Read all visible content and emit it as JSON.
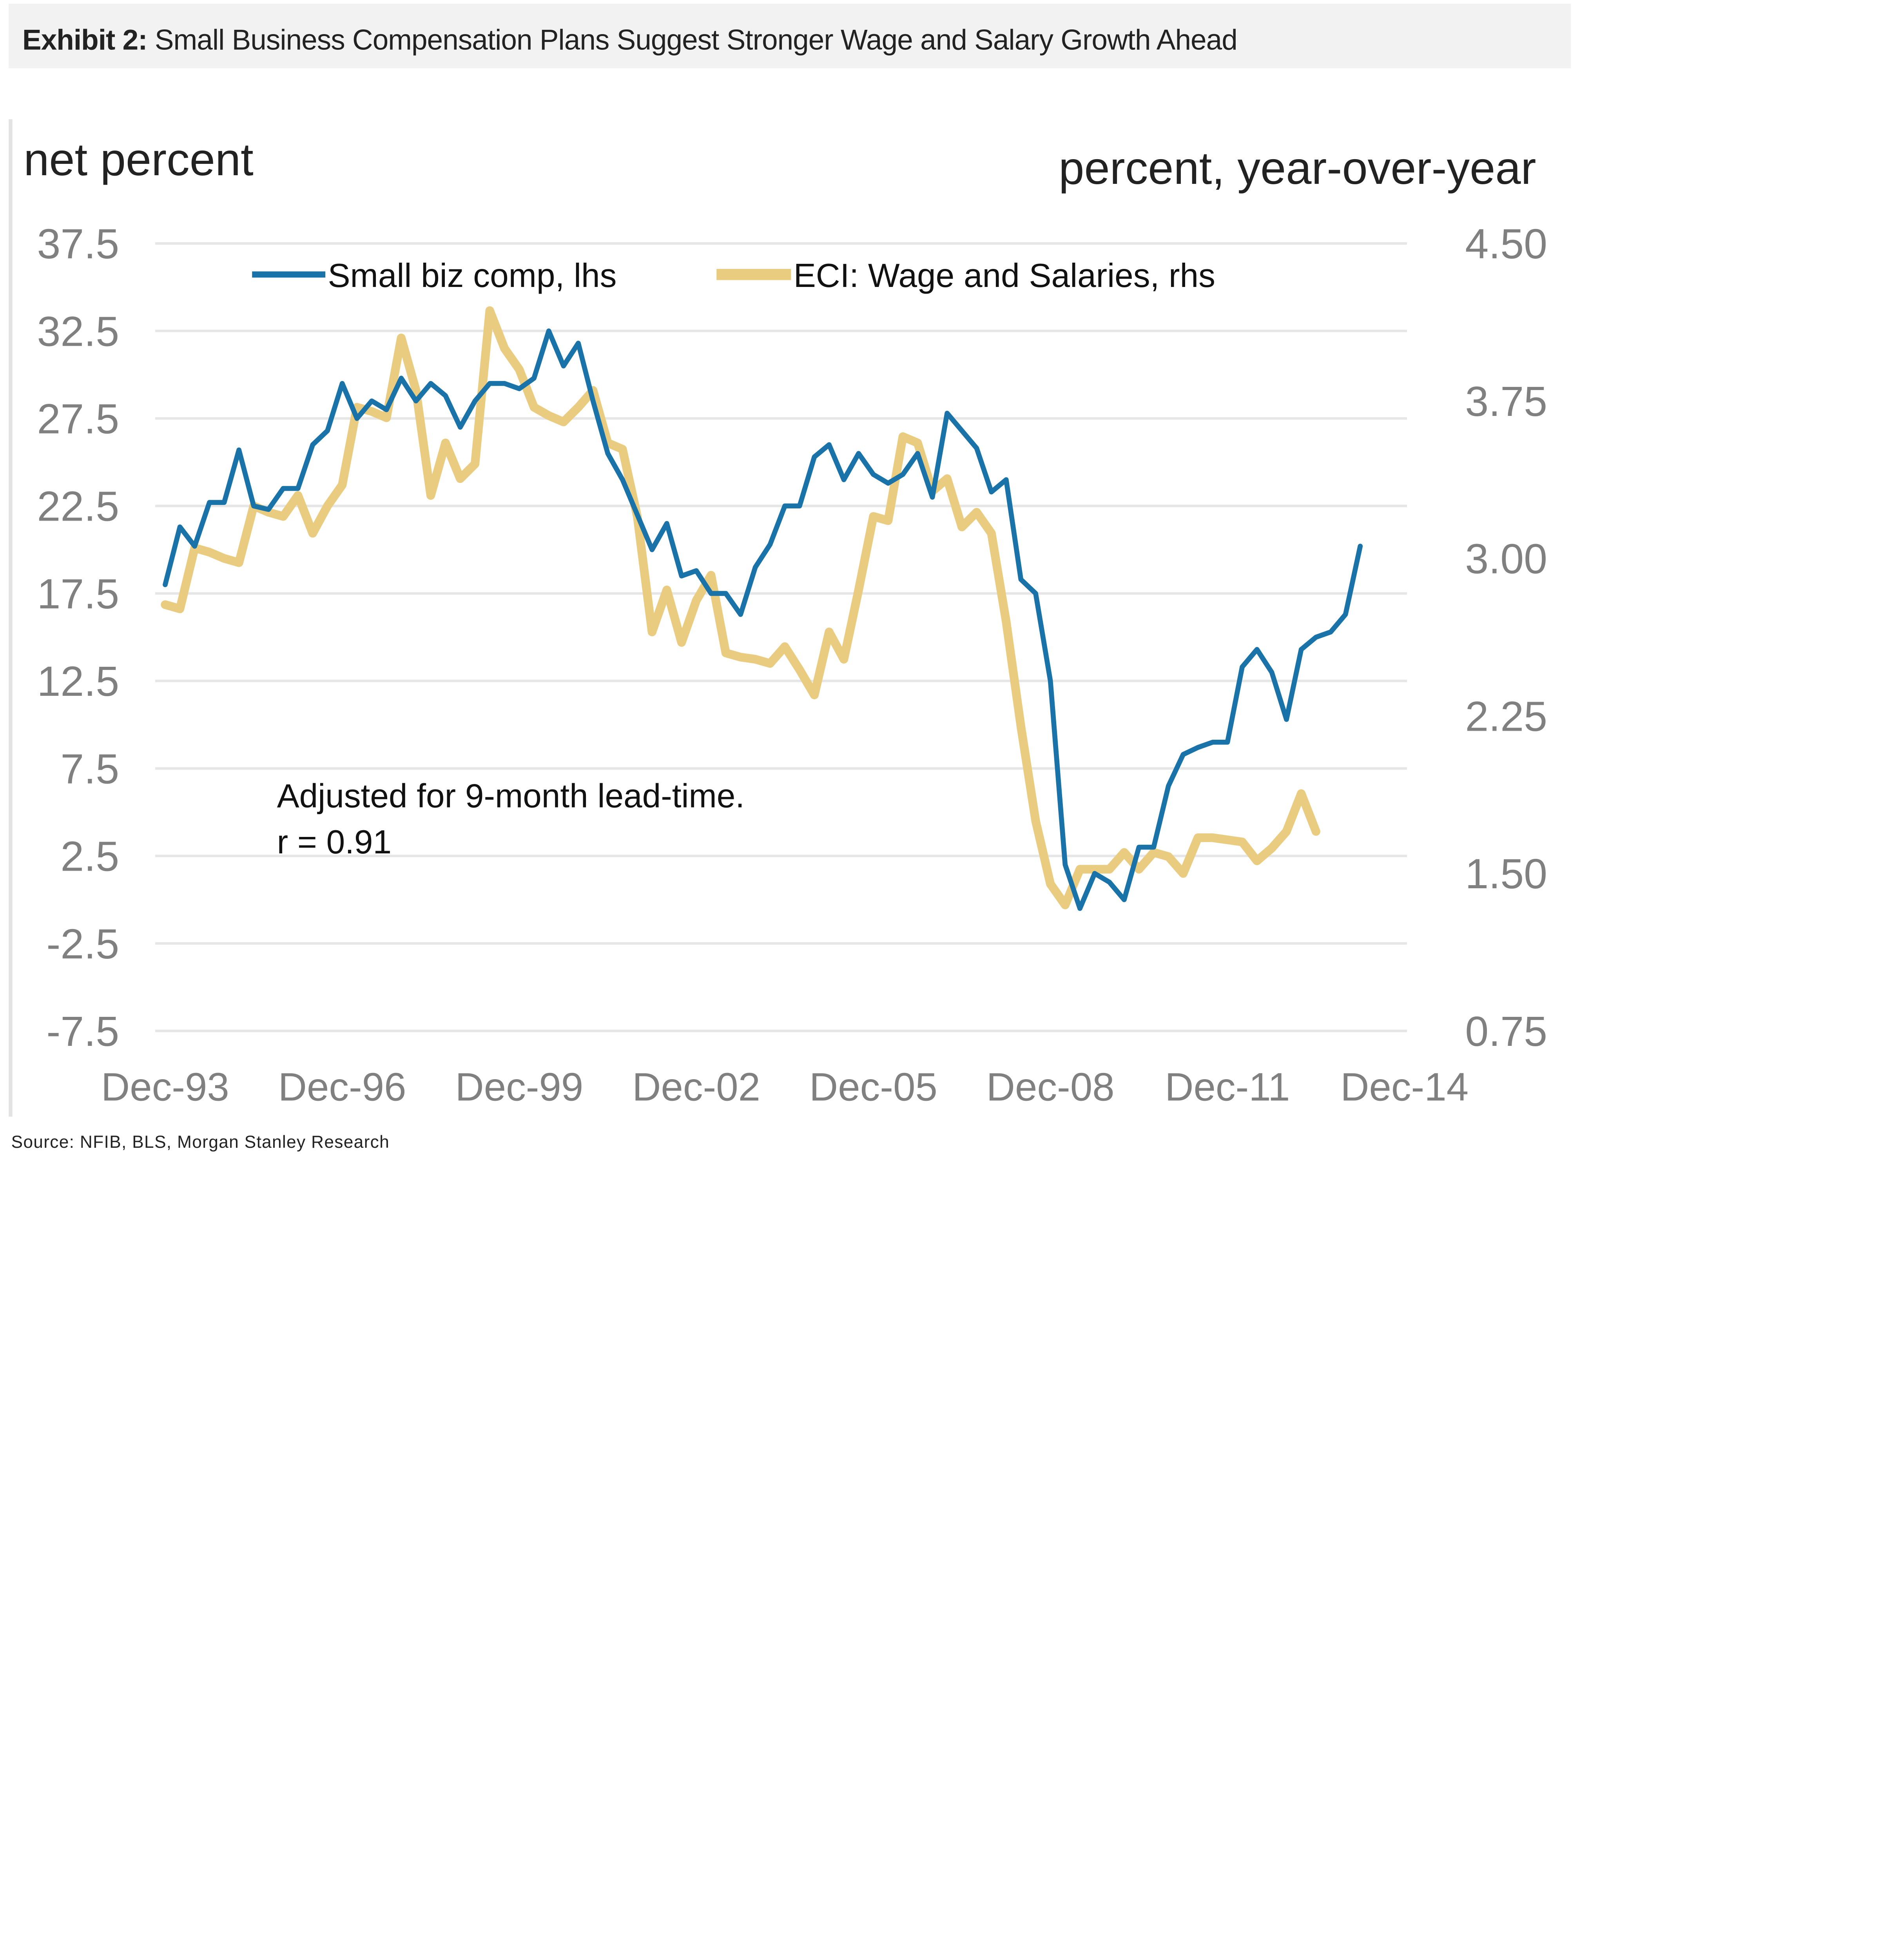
{
  "header": {
    "exhibit_label": "Exhibit 2:",
    "title": "Small Business Compensation Plans Suggest Stronger Wage and Salary Growth Ahead"
  },
  "footer": {
    "source": "Source: NFIB, BLS, Morgan Stanley Research"
  },
  "colors": {
    "small_biz": "#1a73a8",
    "eci": "#e9cc7f",
    "grid": "#e6e6e6",
    "tick_text": "#808080",
    "title_bg": "#f2f2f2"
  },
  "chart_data": {
    "type": "line",
    "title": "Small Business Compensation Plans Suggest Stronger Wage and Salary Growth Ahead",
    "ylabel_left": "net percent",
    "ylabel_right": "percent, year-over-year",
    "xlabel": "",
    "annotation": [
      "Adjusted for 9-month lead-time.",
      "r = 0.91"
    ],
    "legend": [
      "Small biz comp, lhs",
      "ECI: Wage and Salaries, rhs"
    ],
    "legend_position": "top",
    "grid": true,
    "x_ticks": [
      "Dec-93",
      "Dec-96",
      "Dec-99",
      "Dec-02",
      "Dec-05",
      "Dec-08",
      "Dec-11",
      "Dec-14"
    ],
    "x_tick_years": [
      1993.92,
      1996.92,
      1999.92,
      2002.92,
      2005.92,
      2008.92,
      2011.92,
      2014.92
    ],
    "xlim": [
      1993.92,
      2014.92
    ],
    "y_left_ticks": [
      "37.5",
      "32.5",
      "27.5",
      "22.5",
      "17.5",
      "12.5",
      "7.5",
      "2.5",
      "-2.5",
      "-7.5"
    ],
    "ylim_left": [
      -7.5,
      37.5
    ],
    "y_right_ticks": [
      "4.50",
      "3.75",
      "3.00",
      "2.25",
      "1.50",
      "0.75"
    ],
    "ylim_right": [
      0.75,
      4.5
    ],
    "x_start": 1993.92,
    "x_step": 0.25,
    "series": [
      {
        "name": "Small biz comp, lhs",
        "axis": "left",
        "values": [
          18.0,
          21.3,
          20.2,
          22.7,
          22.7,
          25.7,
          22.5,
          22.3,
          23.5,
          23.5,
          26.0,
          26.8,
          29.5,
          27.5,
          28.5,
          28.0,
          29.8,
          28.5,
          29.5,
          28.8,
          27.0,
          28.5,
          29.5,
          29.5,
          29.2,
          29.8,
          32.5,
          30.5,
          31.8,
          28.5,
          25.5,
          24.0,
          22.0,
          20.0,
          21.5,
          18.5,
          18.8,
          17.5,
          17.5,
          16.3,
          19.0,
          20.3,
          22.5,
          22.5,
          25.3,
          26.0,
          24.0,
          25.5,
          24.3,
          23.8,
          24.3,
          25.5,
          23.0,
          27.8,
          26.8,
          25.8,
          23.3,
          24.0,
          18.3,
          17.5,
          12.5,
          2.0,
          -0.5,
          1.5,
          1.0,
          0.0,
          3.0,
          3.0,
          6.5,
          8.3,
          8.7,
          9.0,
          9.0,
          13.3,
          14.3,
          13.0,
          10.3,
          14.3,
          15.0,
          15.3,
          16.3,
          20.2
        ]
      },
      {
        "name": "ECI: Wage and Salaries, rhs",
        "axis": "right",
        "values": [
          2.78,
          2.76,
          3.05,
          3.03,
          3.0,
          2.98,
          3.25,
          3.22,
          3.2,
          3.3,
          3.12,
          3.25,
          3.35,
          3.72,
          3.7,
          3.67,
          4.05,
          3.8,
          3.3,
          3.55,
          3.38,
          3.45,
          4.18,
          4.0,
          3.9,
          3.72,
          3.68,
          3.65,
          3.72,
          3.8,
          3.55,
          3.52,
          3.2,
          2.65,
          2.85,
          2.6,
          2.8,
          2.92,
          2.55,
          2.53,
          2.52,
          2.5,
          2.58,
          2.47,
          2.35,
          2.65,
          2.52,
          2.85,
          3.2,
          3.18,
          3.58,
          3.55,
          3.32,
          3.38,
          3.15,
          3.22,
          3.12,
          2.7,
          2.2,
          1.75,
          1.45,
          1.35,
          1.52,
          1.52,
          1.52,
          1.6,
          1.52,
          1.6,
          1.58,
          1.5,
          1.67,
          1.67,
          1.66,
          1.65,
          1.56,
          1.62,
          1.7,
          1.88,
          1.7
        ]
      }
    ]
  }
}
